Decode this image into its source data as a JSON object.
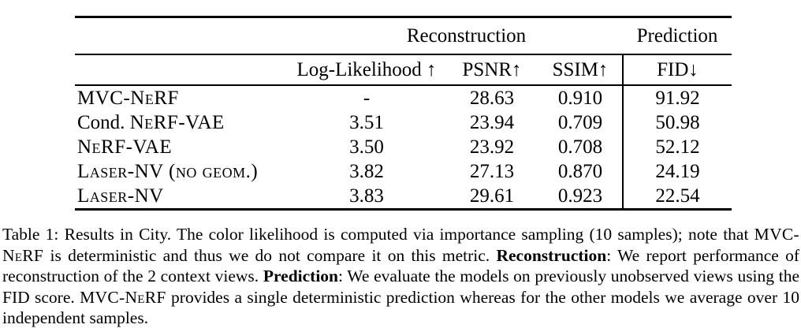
{
  "table": {
    "group_headers": {
      "reconstruction": "Reconstruction",
      "prediction": "Prediction"
    },
    "columns": [
      "Log-Likelihood ↑",
      "PSNR↑",
      "SSIM↑",
      "FID↓"
    ],
    "rows": [
      {
        "prefix": "",
        "name": "MVC-NeRF",
        "log_likelihood": "-",
        "psnr": "28.63",
        "ssim": "0.910",
        "fid": "91.92"
      },
      {
        "prefix": "Cond. ",
        "name": "NeRF-VAE",
        "log_likelihood": "3.51",
        "psnr": "23.94",
        "ssim": "0.709",
        "fid": "50.98"
      },
      {
        "prefix": "",
        "name": "NeRF-VAE",
        "log_likelihood": "3.50",
        "psnr": "23.92",
        "ssim": "0.708",
        "fid": "52.12"
      },
      {
        "prefix": "",
        "name": "Laser-NV (no geom.)",
        "log_likelihood": "3.82",
        "psnr": "27.13",
        "ssim": "0.870",
        "fid": "24.19"
      },
      {
        "prefix": "",
        "name": "Laser-NV",
        "log_likelihood": "3.83",
        "psnr": "29.61",
        "ssim": "0.923",
        "fid": "22.54"
      }
    ]
  },
  "caption": {
    "label": "Table 1",
    "segments": [
      {
        "style": "normal",
        "text": "Table 1: Results in City. The color likelihood is computed via importance sampling (10 samples); note that "
      },
      {
        "style": "sc",
        "text": "MVC-NeRF"
      },
      {
        "style": "normal",
        "text": " is deterministic and thus we do not compare it on this metric. "
      },
      {
        "style": "bold",
        "text": "Reconstruction"
      },
      {
        "style": "normal",
        "text": ": We report performance of reconstruction of the 2 context views. "
      },
      {
        "style": "bold",
        "text": "Prediction"
      },
      {
        "style": "normal",
        "text": ": We evaluate the models on previously unobserved views using the FID score. "
      },
      {
        "style": "sc",
        "text": "MVC-NeRF"
      },
      {
        "style": "normal",
        "text": " provides a single deterministic prediction whereas for the other models we average over 10 independent samples."
      }
    ]
  }
}
